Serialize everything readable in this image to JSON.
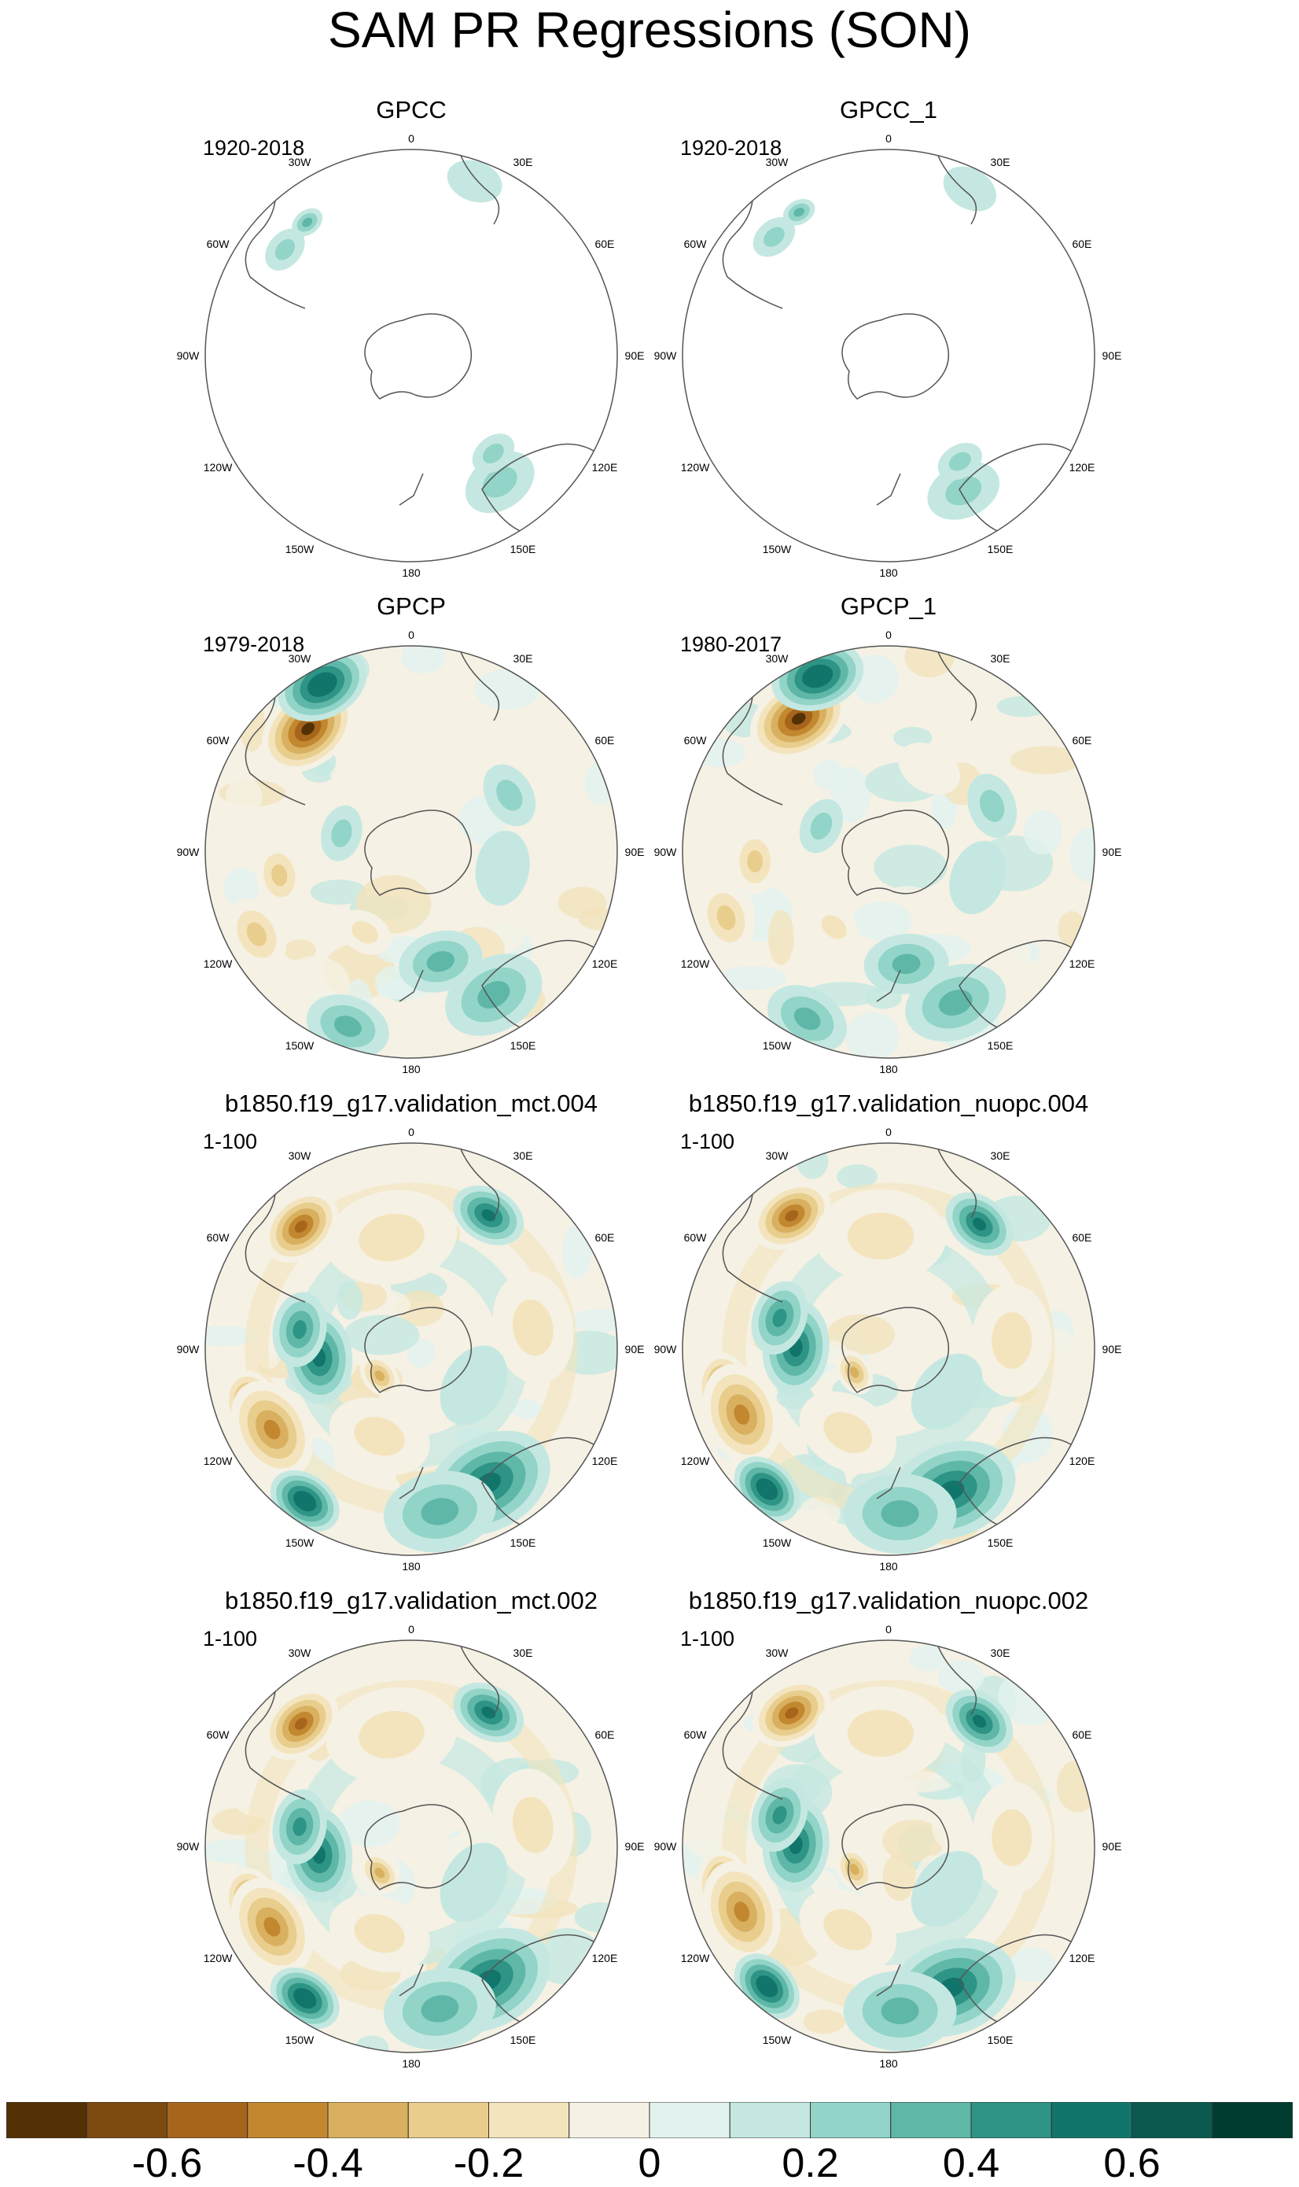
{
  "title": "SAM PR Regressions (SON)",
  "panels": [
    {
      "title": "GPCC",
      "period": "1920-2018",
      "field": "sparse_gpcc"
    },
    {
      "title": "GPCC_1",
      "period": "1920-2018",
      "field": "sparse_gpcc"
    },
    {
      "title": "GPCP",
      "period": "1979-2018",
      "field": "gpcp"
    },
    {
      "title": "GPCP_1",
      "period": "1980-2017",
      "field": "gpcp"
    },
    {
      "title": "b1850.f19_g17.validation_mct.004",
      "period": "1-100",
      "field": "model"
    },
    {
      "title": "b1850.f19_g17.validation_nuopc.004",
      "period": "1-100",
      "field": "model"
    },
    {
      "title": "b1850.f19_g17.validation_mct.002",
      "period": "1-100",
      "field": "model"
    },
    {
      "title": "b1850.f19_g17.validation_nuopc.002",
      "period": "1-100",
      "field": "model"
    }
  ],
  "longitude_labels": [
    "0",
    "30E",
    "60E",
    "90E",
    "120E",
    "150E",
    "180",
    "150W",
    "120W",
    "90W",
    "60W",
    "30W"
  ],
  "colorbar": {
    "colors": [
      "#543005",
      "#7d4a0f",
      "#a6651b",
      "#c2872f",
      "#d8b060",
      "#e8cd8c",
      "#f3e4bd",
      "#f5f1e4",
      "#e2f2ef",
      "#c4e8e1",
      "#92d4c8",
      "#5fb7a8",
      "#2e9485",
      "#12756b",
      "#0a5a4f",
      "#003c30"
    ],
    "tick_labels": [
      "-0.6",
      "-0.4",
      "-0.2",
      "0",
      "0.2",
      "0.4",
      "0.6"
    ]
  },
  "chart_data": {
    "type": "heatmap",
    "title": "SAM PR Regressions (SON)",
    "projection": "south polar stereographic",
    "contour_levels": [
      -0.7,
      -0.6,
      -0.5,
      -0.4,
      -0.3,
      -0.2,
      -0.1,
      0,
      0.1,
      0.2,
      0.3,
      0.4,
      0.5,
      0.6,
      0.7
    ],
    "panels": [
      "GPCC",
      "GPCC_1",
      "GPCP",
      "GPCP_1",
      "b1850.f19_g17.validation_mct.004",
      "b1850.f19_g17.validation_nuopc.004",
      "b1850.f19_g17.validation_mct.002",
      "b1850.f19_g17.validation_nuopc.002"
    ]
  }
}
